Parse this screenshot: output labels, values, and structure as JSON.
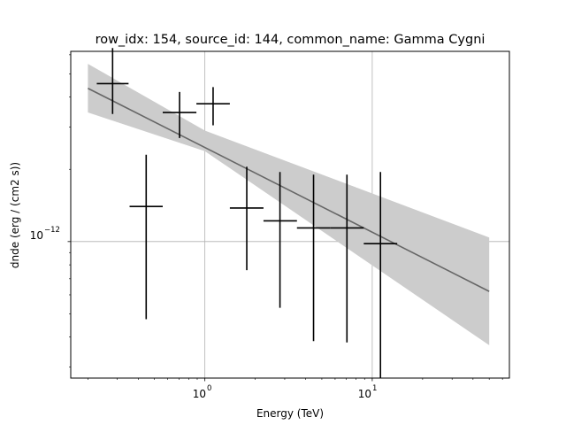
{
  "chart_data": {
    "type": "scatter",
    "title": "row_idx: 154, source_id: 144, common_name: Gamma Cygni",
    "xlabel": "Energy (TeV)",
    "ylabel": "dnde (erg / (cm2 s))",
    "xscale": "log",
    "yscale": "log",
    "xlim": [
      0.158,
      66
    ],
    "ylim": [
      2.7e-13,
      6.2e-12
    ],
    "grid": true,
    "x_ticks": [
      {
        "value": 1,
        "label": "10^0"
      },
      {
        "value": 10,
        "label": "10^1"
      }
    ],
    "y_ticks": [
      {
        "value": 1e-12,
        "label": "10^-12"
      }
    ],
    "tick_label_parts": {
      "x0": {
        "base": "10",
        "exp": "0"
      },
      "x1": {
        "base": "10",
        "exp": "1"
      },
      "y0": {
        "base": "10",
        "exp": "−12"
      }
    },
    "series": [
      {
        "kind": "points",
        "color": "#000000",
        "points": [
          {
            "x": 0.281,
            "y": 4.55e-12,
            "xerr": [
              0.226,
              0.35
            ],
            "yerr": [
              3.4e-12,
              6.4e-12
            ]
          },
          {
            "x": 0.446,
            "y": 1.4e-12,
            "xerr": [
              0.355,
              0.56
            ],
            "yerr": [
              4.75e-13,
              2.3e-12
            ]
          },
          {
            "x": 0.706,
            "y": 3.45e-12,
            "xerr": [
              0.56,
              0.89
            ],
            "yerr": [
              2.7e-12,
              4.2e-12
            ]
          },
          {
            "x": 1.12,
            "y": 3.75e-12,
            "xerr": [
              0.89,
              1.41
            ],
            "yerr": [
              3.05e-12,
              4.4e-12
            ]
          },
          {
            "x": 1.78,
            "y": 1.38e-12,
            "xerr": [
              1.41,
              2.24
            ],
            "yerr": [
              7.6e-13,
              2.05e-12
            ]
          },
          {
            "x": 2.81,
            "y": 1.22e-12,
            "xerr": [
              2.24,
              3.55
            ],
            "yerr": [
              5.3e-13,
              1.95e-12
            ]
          },
          {
            "x": 4.46,
            "y": 1.14e-12,
            "xerr": [
              3.55,
              5.6
            ],
            "yerr": [
              3.85e-13,
              1.9e-12
            ]
          },
          {
            "x": 7.06,
            "y": 1.14e-12,
            "xerr": [
              5.6,
              8.9
            ],
            "yerr": [
              3.8e-13,
              1.9e-12
            ]
          },
          {
            "x": 11.2,
            "y": 9.8e-13,
            "xerr": [
              8.9,
              14.1
            ],
            "yerr": [
              2.7e-13,
              1.95e-12
            ]
          }
        ]
      },
      {
        "kind": "model",
        "color": "#666666",
        "x": [
          0.2,
          50
        ],
        "y": [
          4.35e-12,
          6.2e-13
        ]
      },
      {
        "kind": "band",
        "color": "#cccccc",
        "x": [
          0.2,
          1,
          50
        ],
        "y_low": [
          3.45e-12,
          2.38e-12,
          3.7e-13
        ],
        "y_high": [
          5.5e-12,
          2.9e-12,
          1.04e-12
        ]
      }
    ]
  }
}
